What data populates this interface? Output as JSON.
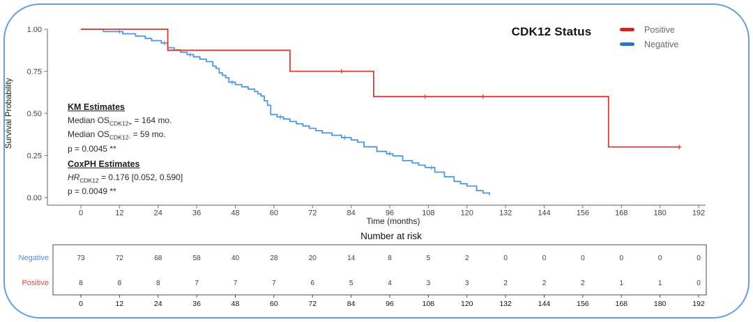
{
  "frame": {
    "border_color": "#6e9bd9"
  },
  "title": "CDK12 Status",
  "legend": {
    "items": [
      {
        "label": "Positive",
        "color": "#c32a21"
      },
      {
        "label": "Negative",
        "color": "#1f78c8"
      }
    ]
  },
  "annotations": {
    "km": {
      "heading": "KM Estimates",
      "line1": {
        "pre": "Median OS",
        "sub": "CDK12+",
        "post": " = 164 mo."
      },
      "line2": {
        "pre": "Median OS",
        "sub": "CDK12-",
        "post": " = 59 mo."
      },
      "pvalue": "p = 0.0045 **"
    },
    "cox": {
      "heading": "CoxPH Estimates",
      "line1": {
        "pre": "HR",
        "sub": "CDK12",
        "post": " = 0.176 [0.052, 0.590]"
      },
      "pvalue": "p = 0.0049 **"
    }
  },
  "chart_data": {
    "type": "line",
    "subtype": "kaplan-meier-step",
    "title": "CDK12 Status",
    "xlabel": "Time (months)",
    "ylabel": "Survival Probability",
    "xlim": [
      0,
      192
    ],
    "ylim": [
      0,
      1
    ],
    "grid": false,
    "legend_position": "top-right",
    "xticks": [
      0,
      12,
      24,
      36,
      48,
      60,
      72,
      84,
      96,
      108,
      120,
      132,
      144,
      156,
      168,
      180,
      192
    ],
    "yticks": [
      0.0,
      0.25,
      0.5,
      0.75,
      1.0
    ],
    "ytick_labels": [
      "0.00",
      "0.25",
      "0.50",
      "0.75",
      "1.00"
    ],
    "series": [
      {
        "name": "Positive",
        "color": "#d93a31",
        "median_os_months": 164,
        "points": [
          [
            0,
            1.0
          ],
          [
            27,
            0.875
          ],
          [
            65,
            0.75
          ],
          [
            91,
            0.6
          ],
          [
            164,
            0.3
          ],
          [
            186,
            0.3
          ]
        ],
        "censor_marks": [
          [
            81,
            0.75
          ],
          [
            107,
            0.6
          ],
          [
            125,
            0.6
          ],
          [
            186,
            0.3
          ]
        ]
      },
      {
        "name": "Negative",
        "color": "#4e97e0",
        "median_os_months": 59,
        "points": [
          [
            0,
            1.0
          ],
          [
            7,
            0.986
          ],
          [
            13,
            0.973
          ],
          [
            17,
            0.959
          ],
          [
            20,
            0.945
          ],
          [
            22,
            0.932
          ],
          [
            25,
            0.918
          ],
          [
            27,
            0.89
          ],
          [
            29,
            0.877
          ],
          [
            31,
            0.863
          ],
          [
            33,
            0.849
          ],
          [
            35,
            0.836
          ],
          [
            37,
            0.822
          ],
          [
            39,
            0.808
          ],
          [
            41,
            0.781
          ],
          [
            42,
            0.767
          ],
          [
            43,
            0.74
          ],
          [
            44,
            0.726
          ],
          [
            45,
            0.712
          ],
          [
            46,
            0.685
          ],
          [
            48,
            0.671
          ],
          [
            50,
            0.658
          ],
          [
            52,
            0.644
          ],
          [
            54,
            0.63
          ],
          [
            55,
            0.616
          ],
          [
            56,
            0.603
          ],
          [
            57,
            0.575
          ],
          [
            58,
            0.548
          ],
          [
            59,
            0.493
          ],
          [
            61,
            0.479
          ],
          [
            63,
            0.466
          ],
          [
            65,
            0.452
          ],
          [
            67,
            0.438
          ],
          [
            69,
            0.425
          ],
          [
            71,
            0.411
          ],
          [
            73,
            0.397
          ],
          [
            75,
            0.384
          ],
          [
            78,
            0.37
          ],
          [
            81,
            0.356
          ],
          [
            84,
            0.342
          ],
          [
            86,
            0.329
          ],
          [
            88,
            0.301
          ],
          [
            92,
            0.274
          ],
          [
            95,
            0.26
          ],
          [
            97,
            0.247
          ],
          [
            100,
            0.219
          ],
          [
            103,
            0.205
          ],
          [
            105,
            0.192
          ],
          [
            107,
            0.178
          ],
          [
            110,
            0.151
          ],
          [
            113,
            0.123
          ],
          [
            116,
            0.096
          ],
          [
            118,
            0.082
          ],
          [
            120,
            0.068
          ],
          [
            123,
            0.041
          ],
          [
            125,
            0.027
          ],
          [
            127,
            0.014
          ]
        ],
        "censor_marks": [
          [
            12,
            0.986
          ],
          [
            26,
            0.918
          ],
          [
            34,
            0.849
          ],
          [
            47,
            0.685
          ],
          [
            62,
            0.479
          ],
          [
            82,
            0.356
          ],
          [
            96,
            0.26
          ],
          [
            109,
            0.178
          ]
        ]
      }
    ]
  },
  "risk_table": {
    "title": "Number at risk",
    "times": [
      0,
      12,
      24,
      36,
      48,
      60,
      72,
      84,
      96,
      108,
      120,
      132,
      144,
      156,
      168,
      180,
      192
    ],
    "rows": [
      {
        "label": "Negative",
        "color": "#4a90e0",
        "values": [
          73,
          72,
          68,
          58,
          40,
          28,
          20,
          14,
          8,
          5,
          2,
          0,
          0,
          0,
          0,
          0,
          0
        ]
      },
      {
        "label": "Positive",
        "color": "#e0453a",
        "values": [
          8,
          8,
          8,
          7,
          7,
          7,
          6,
          5,
          4,
          3,
          3,
          2,
          2,
          2,
          1,
          1,
          0
        ]
      }
    ]
  }
}
